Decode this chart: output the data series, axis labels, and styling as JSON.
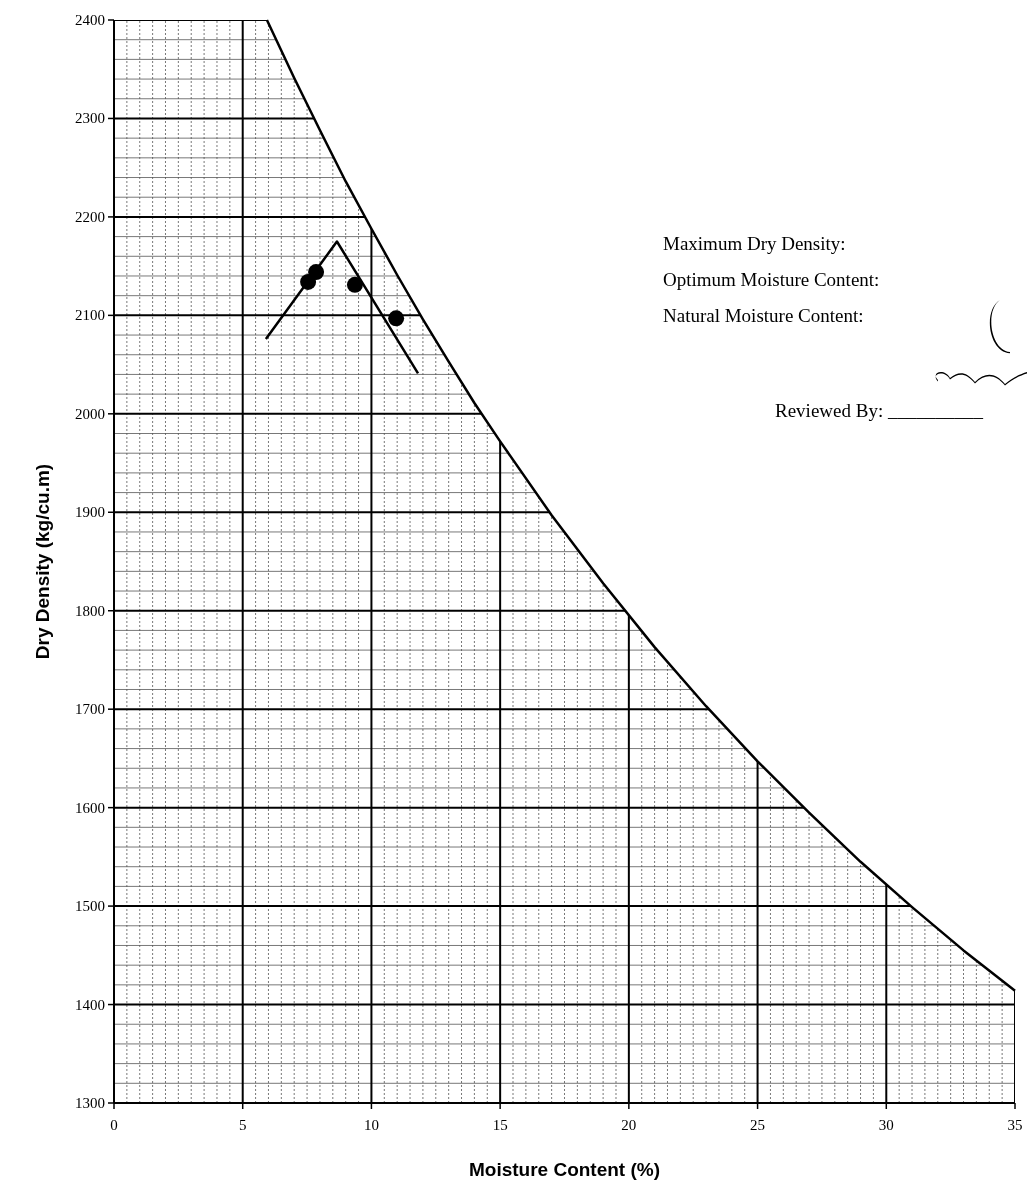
{
  "chart_data": {
    "type": "line",
    "xlabel": "Moisture Content (%)",
    "ylabel": "Dry Density (kg/cu.m)",
    "xlim": [
      0,
      35
    ],
    "ylim": [
      1300,
      2400
    ],
    "xticks": [
      0,
      5,
      10,
      15,
      20,
      25,
      30,
      35
    ],
    "yticks": [
      1300,
      1400,
      1500,
      1600,
      1700,
      1800,
      1900,
      2000,
      2100,
      2200,
      2300,
      2400
    ],
    "grid": true,
    "series": [
      {
        "color": "#000000",
        "marker": "none",
        "x": [
          5.94,
          7,
          8,
          9,
          10,
          11,
          12,
          13,
          14,
          15,
          17,
          19,
          21,
          23,
          25,
          27,
          29,
          31,
          33,
          35
        ],
        "values": [
          2400,
          2341,
          2288,
          2236,
          2188,
          2141,
          2096,
          2053,
          2011,
          1972,
          1897,
          1828,
          1763,
          1703,
          1647,
          1595,
          1545,
          1499,
          1455,
          1414
        ]
      },
      {
        "type": "scatter",
        "color": "#000000",
        "marker": "circle",
        "x": [
          7.54,
          7.85,
          9.36,
          10.96
        ],
        "values": [
          2134,
          2144,
          2131,
          2097
        ]
      },
      {
        "color": "#000000",
        "marker": "none",
        "x": [
          5.9,
          8.66,
          11.81
        ],
        "values": [
          2076,
          2175,
          2041
        ]
      }
    ],
    "annotations": [
      "Maximum Dry Density:",
      "Optimum Moisture Content:",
      "Natural Moisture Content:",
      "Reviewed By: __________"
    ]
  }
}
